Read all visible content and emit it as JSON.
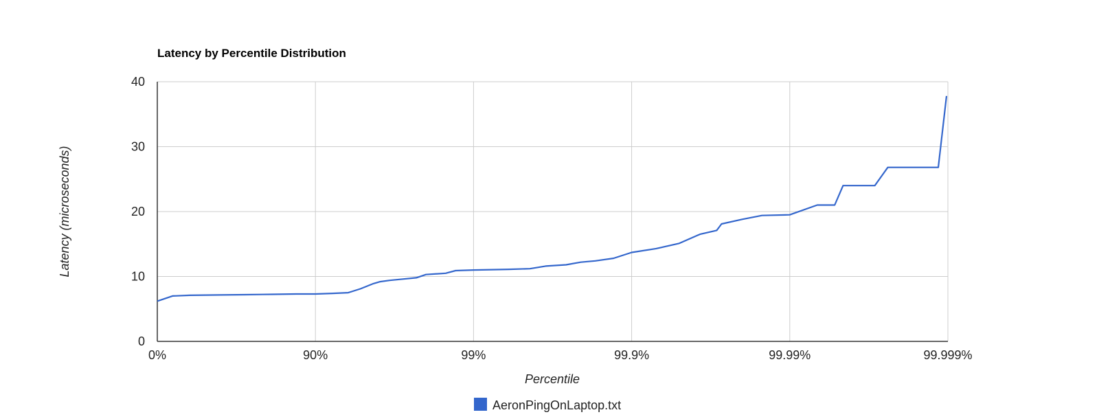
{
  "chart_data": {
    "type": "line",
    "title": "Latency by Percentile Distribution",
    "xlabel": "Percentile",
    "ylabel": "Latency (microseconds)",
    "x_scale": "log-percentile",
    "x_ticks": [
      "0%",
      "90%",
      "99%",
      "99.9%",
      "99.99%",
      "99.999%"
    ],
    "x_tick_values": [
      0,
      90,
      99,
      99.9,
      99.99,
      99.999
    ],
    "y_ticks": [
      "0",
      "10",
      "20",
      "30",
      "40"
    ],
    "ylim": [
      0,
      40
    ],
    "grid": true,
    "legend_position": "bottom",
    "colors": {
      "series": "#3366cc",
      "grid": "#cccccc",
      "axis": "#333333"
    },
    "series": [
      {
        "name": "AeronPingOnLaptop.txt",
        "color": "#3366cc",
        "points": [
          [
            0,
            6.2
          ],
          [
            19.9,
            7.0
          ],
          [
            37.7,
            7.1
          ],
          [
            60.2,
            7.15
          ],
          [
            72.3,
            7.2
          ],
          [
            81.4,
            7.25
          ],
          [
            86.8,
            7.3
          ],
          [
            90.0,
            7.3
          ],
          [
            92.2,
            7.4
          ],
          [
            93.8,
            7.5
          ],
          [
            94.8,
            8.1
          ],
          [
            95.7,
            8.9
          ],
          [
            96.1,
            9.2
          ],
          [
            96.6,
            9.4
          ],
          [
            97.2,
            9.6
          ],
          [
            97.7,
            9.8
          ],
          [
            98.0,
            10.3
          ],
          [
            98.5,
            10.5
          ],
          [
            98.7,
            10.9
          ],
          [
            99.0,
            11.0
          ],
          [
            99.4,
            11.1
          ],
          [
            99.56,
            11.2
          ],
          [
            99.65,
            11.6
          ],
          [
            99.74,
            11.8
          ],
          [
            99.79,
            12.2
          ],
          [
            99.83,
            12.4
          ],
          [
            99.87,
            12.8
          ],
          [
            99.9,
            13.7
          ],
          [
            99.93,
            14.3
          ],
          [
            99.95,
            15.1
          ],
          [
            99.963,
            16.5
          ],
          [
            99.971,
            17.1
          ],
          [
            99.973,
            18.1
          ],
          [
            99.98,
            18.8
          ],
          [
            99.985,
            19.4
          ],
          [
            99.99,
            19.5
          ],
          [
            99.9933,
            21.0
          ],
          [
            99.9948,
            21.0
          ],
          [
            99.9954,
            24.0
          ],
          [
            99.9971,
            24.0
          ],
          [
            99.9976,
            26.8
          ],
          [
            99.99885,
            26.8
          ],
          [
            99.99898,
            37.8
          ]
        ]
      }
    ]
  }
}
